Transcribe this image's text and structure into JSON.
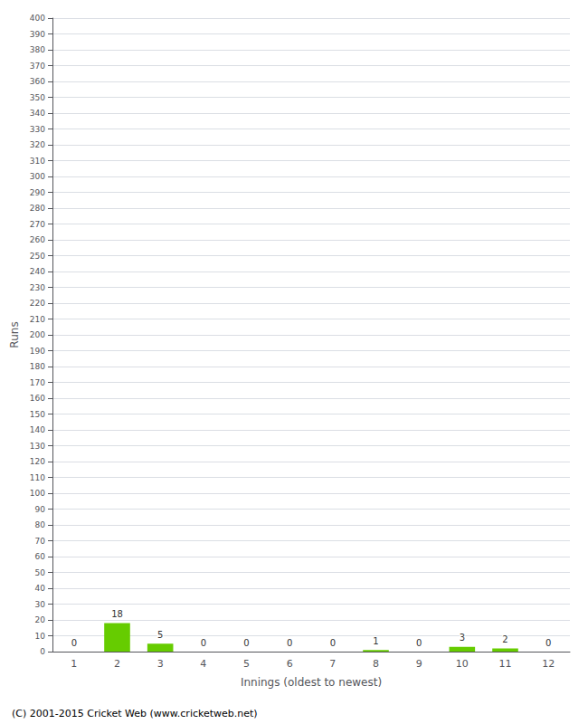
{
  "chart_data": {
    "type": "bar",
    "xlabel": "Innings (oldest to newest)",
    "ylabel": "Runs",
    "categories": [
      1,
      2,
      3,
      4,
      5,
      6,
      7,
      8,
      9,
      10,
      11,
      12
    ],
    "values": [
      0,
      18,
      5,
      0,
      0,
      0,
      0,
      1,
      0,
      3,
      2,
      0
    ],
    "color": "#66cc00",
    "ylim": [
      0,
      400
    ],
    "yticks": [
      0,
      10,
      20,
      30,
      40,
      50,
      60,
      70,
      80,
      90,
      100,
      110,
      120,
      130,
      140,
      150,
      160,
      170,
      180,
      190,
      200,
      210,
      220,
      230,
      240,
      250,
      260,
      270,
      280,
      290,
      300,
      310,
      320,
      330,
      340,
      350,
      360,
      370,
      380,
      390,
      400
    ],
    "grid": true,
    "data_labels": true,
    "annotations": [
      "(C) 2001-2015 Cricket Web (www.cricketweb.net)"
    ]
  }
}
